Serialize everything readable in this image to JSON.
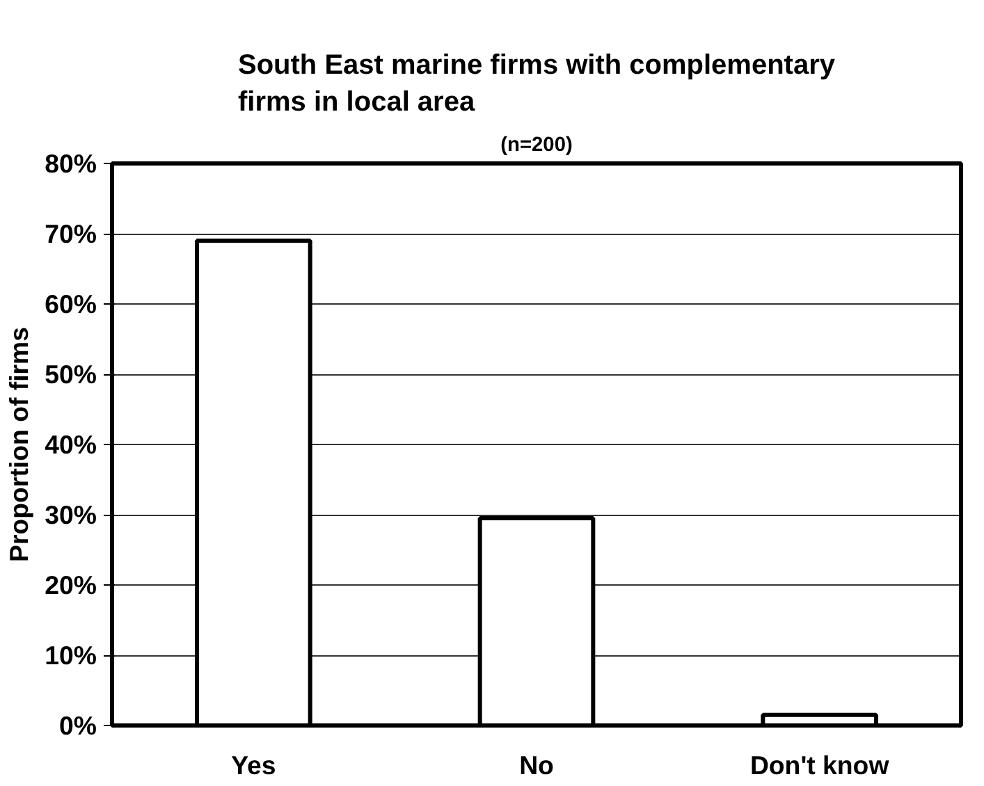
{
  "chart_data": {
    "type": "bar",
    "title": "South East marine firms with complementary firms in local area",
    "subtitle": "(n=200)",
    "ylabel": "Proportion of firms",
    "categories": [
      "Yes",
      "No",
      "Don't know"
    ],
    "series": [
      {
        "color": "#ffffff",
        "values": [
          69,
          29.5,
          1.5
        ]
      }
    ],
    "ylim": [
      0,
      80
    ],
    "yticks": [
      {
        "value": 0,
        "label": "0%"
      },
      {
        "value": 10,
        "label": "10%"
      },
      {
        "value": 20,
        "label": "20%"
      },
      {
        "value": 30,
        "label": "30%"
      },
      {
        "value": 40,
        "label": "40%"
      },
      {
        "value": 50,
        "label": "50%"
      },
      {
        "value": 60,
        "label": "60%"
      },
      {
        "value": 70,
        "label": "70%"
      },
      {
        "value": 80,
        "label": "80%"
      }
    ],
    "grid": "y"
  }
}
